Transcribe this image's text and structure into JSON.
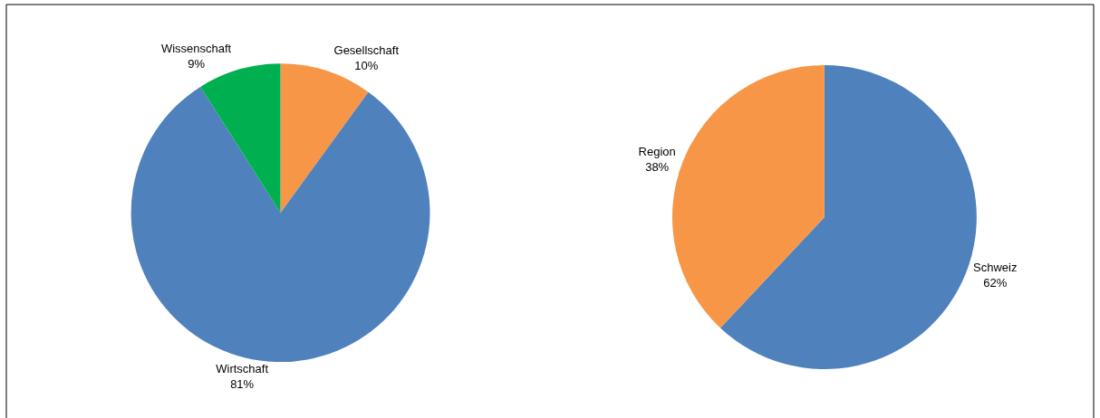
{
  "chart_data": [
    {
      "type": "pie",
      "categories": [
        "Gesellschaft",
        "Wirtschaft",
        "Wissenschaft"
      ],
      "values": [
        10,
        81,
        9
      ],
      "value_labels": [
        "10%",
        "81%",
        "9%"
      ],
      "colors": [
        "#f79646",
        "#4f81bd",
        "#00b050"
      ],
      "legend": false
    },
    {
      "type": "pie",
      "categories": [
        "Schweiz",
        "Region"
      ],
      "values": [
        62,
        38
      ],
      "value_labels": [
        "62%",
        "38%"
      ],
      "colors": [
        "#4f81bd",
        "#f79646"
      ],
      "legend": false
    }
  ]
}
